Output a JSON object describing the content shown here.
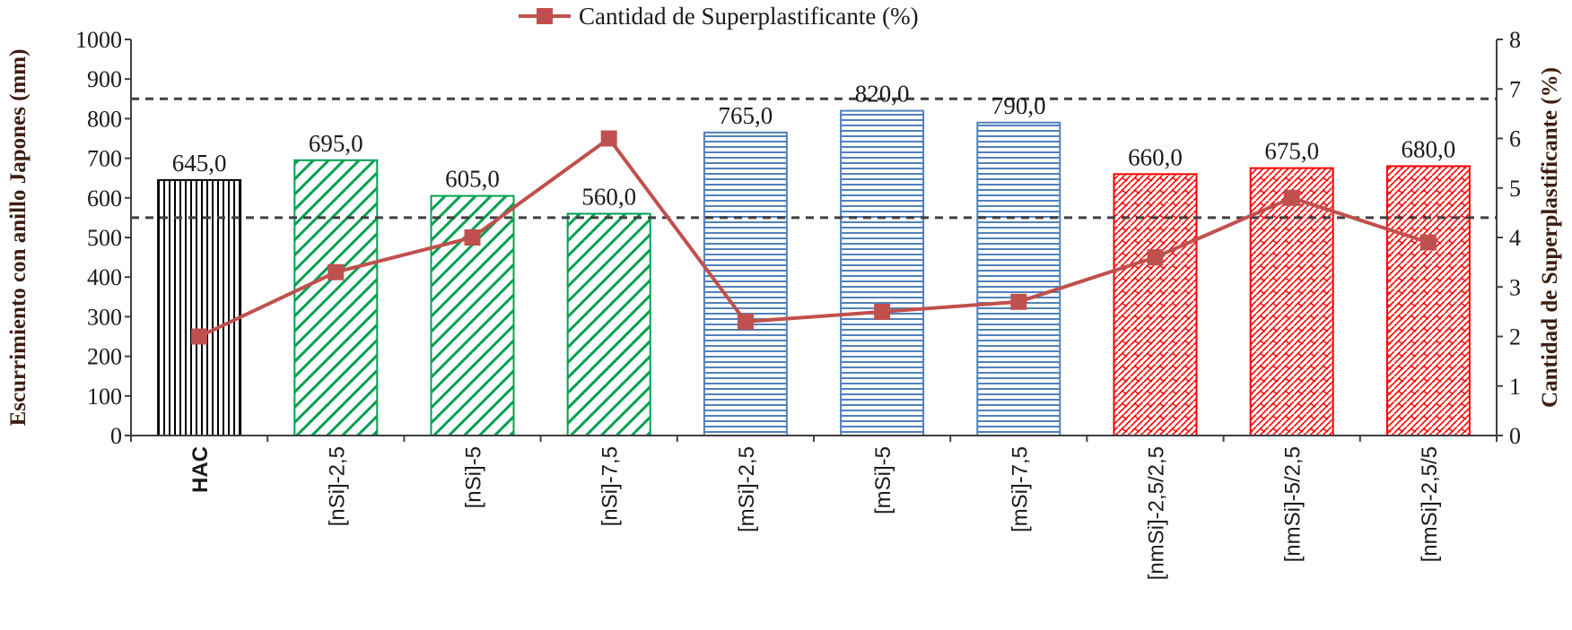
{
  "chart_data": {
    "type": "bar",
    "legend": {
      "label": "Cantidad de Superplastificante (%)",
      "placement": "top-center"
    },
    "categories": [
      "HAC",
      "[nSi]-2,5",
      "[nSi]-5",
      "[nSi]-7,5",
      "[mSi]-2,5",
      "[mSi]-5",
      "[mSi]-7,5",
      "[nmSi]-2,5/2,5",
      "[nmSi]-5/2,5",
      "[nmSi]-2,5/5"
    ],
    "bar_labels": [
      "645,0",
      "695,0",
      "605,0",
      "560,0",
      "765,0",
      "820,0",
      "790,0",
      "660,0",
      "675,0",
      "680,0"
    ],
    "series": [
      {
        "kind": "bar",
        "axis": "left",
        "values": [
          645,
          695,
          605,
          560,
          765,
          820,
          790,
          660,
          675,
          680
        ],
        "colors": [
          "#000000",
          "#00a050",
          "#00a050",
          "#00a050",
          "#4f81bd",
          "#4f81bd",
          "#4f81bd",
          "#ff0000",
          "#ff0000",
          "#ff0000"
        ],
        "patterns": [
          "vertical",
          "diagonal",
          "diagonal",
          "diagonal",
          "horizontal",
          "horizontal",
          "horizontal",
          "crosshatch",
          "crosshatch",
          "crosshatch"
        ]
      },
      {
        "name": "Cantidad de Superplastificante (%)",
        "kind": "line",
        "axis": "right",
        "marker": "square",
        "color": "#c0504d",
        "values": [
          2.0,
          3.3,
          4.0,
          6.0,
          2.3,
          2.5,
          2.7,
          3.6,
          4.8,
          3.9
        ]
      }
    ],
    "reference_lines": [
      550,
      850
    ],
    "ylabel": "Escurrimiento con anillo Japones (mm)",
    "ylim": [
      0,
      1000
    ],
    "yticks": [
      0,
      100,
      200,
      300,
      400,
      500,
      600,
      700,
      800,
      900,
      1000
    ],
    "y2label": "Cantidad de Superplastificante (%)",
    "y2lim": [
      0,
      8
    ],
    "y2ticks": [
      0,
      1,
      2,
      3,
      4,
      5,
      6,
      7,
      8
    ],
    "grid": false
  }
}
